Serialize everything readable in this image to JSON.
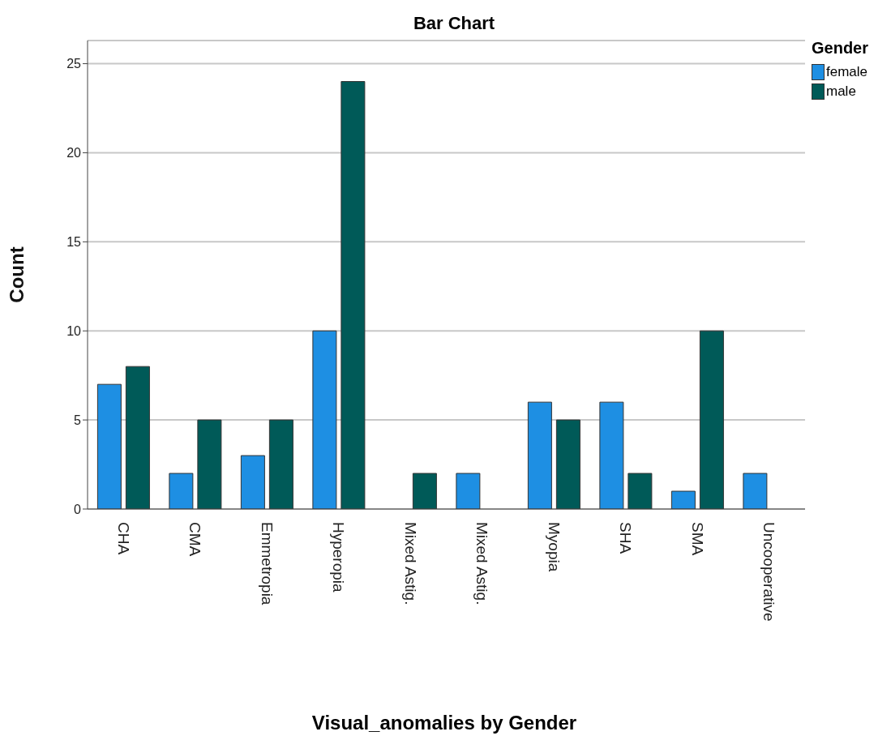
{
  "chart_data": {
    "type": "bar",
    "title": "Bar Chart",
    "xlabel": "Visual_anomalies by Gender",
    "ylabel": "Count",
    "legend_title": "Gender",
    "categories": [
      "CHA",
      "CMA",
      "Emmetropia",
      "Hyperopia",
      "Mixed Astig.",
      "Mixed Astig.",
      "Myopia",
      "SHA",
      "SMA",
      "Uncooperative"
    ],
    "series": [
      {
        "name": "female",
        "color": "#1e8fe3",
        "values": [
          7,
          2,
          3,
          10,
          0,
          2,
          6,
          6,
          1,
          2
        ]
      },
      {
        "name": "male",
        "color": "#005a58",
        "values": [
          8,
          5,
          5,
          24,
          2,
          0,
          5,
          2,
          10,
          0
        ]
      }
    ],
    "ylim": [
      0,
      26.3
    ],
    "yticks": [
      0,
      5,
      10,
      15,
      20,
      25
    ],
    "grid": "y",
    "legend": "top right"
  }
}
